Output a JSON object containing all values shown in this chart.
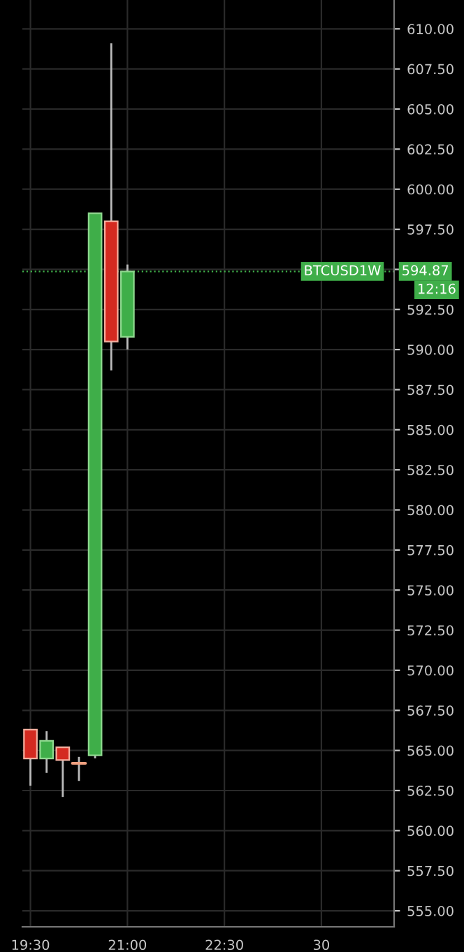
{
  "chart_data": {
    "type": "candlestick",
    "categories": [
      "19:30",
      null,
      null,
      null,
      null,
      null,
      "21:00",
      null,
      null,
      null,
      null,
      null,
      "22:30",
      null,
      null,
      null,
      null,
      null,
      "30",
      null,
      null,
      null,
      null
    ],
    "ohlc": [
      [
        566.3,
        566.3,
        562.8,
        564.5
      ],
      [
        564.5,
        566.2,
        563.6,
        565.6
      ],
      [
        565.2,
        565.2,
        562.1,
        564.4
      ],
      [
        564.2,
        564.6,
        563.1,
        564.2
      ],
      [
        564.7,
        598.5,
        564.5,
        598.5
      ],
      [
        598.0,
        609.1,
        588.7,
        590.5
      ],
      [
        590.8,
        595.3,
        590.0,
        594.87
      ],
      null,
      null,
      null,
      null,
      null,
      null,
      null,
      null,
      null,
      null,
      null,
      null,
      null,
      null,
      null,
      null
    ],
    "colors": [
      "#d42a20",
      "#3fae49",
      "#d42a20",
      "#f0a080",
      "#3fae49",
      "#d42a20",
      "#3fae49",
      null,
      null,
      null,
      null,
      null,
      null,
      null,
      null,
      null,
      null,
      null,
      null,
      null,
      null,
      null,
      null
    ],
    "ylim": [
      554,
      611.8
    ],
    "yticks": [
      {
        "value": 555,
        "label": "555.00"
      },
      {
        "value": 557.5,
        "label": "557.50"
      },
      {
        "value": 560,
        "label": "560.00"
      },
      {
        "value": 562.5,
        "label": "562.50"
      },
      {
        "value": 565,
        "label": "565.00"
      },
      {
        "value": 567.5,
        "label": "567.50"
      },
      {
        "value": 570,
        "label": "570.00"
      },
      {
        "value": 572.5,
        "label": "572.50"
      },
      {
        "value": 575,
        "label": "575.00"
      },
      {
        "value": 577.5,
        "label": "577.50"
      },
      {
        "value": 580,
        "label": "580.00"
      },
      {
        "value": 582.5,
        "label": "582.50"
      },
      {
        "value": 585,
        "label": "585.00"
      },
      {
        "value": 587.5,
        "label": "587.50"
      },
      {
        "value": 590,
        "label": "590.00"
      },
      {
        "value": 592.5,
        "label": "592.50"
      },
      {
        "value": 595,
        "label": null
      },
      {
        "value": 597.5,
        "label": "597.50"
      },
      {
        "value": 600,
        "label": "600.00"
      },
      {
        "value": 602.5,
        "label": "602.50"
      },
      {
        "value": 605,
        "label": "605.00"
      },
      {
        "value": 607.5,
        "label": "607.50"
      },
      {
        "value": 610,
        "label": "610.00"
      }
    ],
    "grid": true,
    "ref_lines": [
      {
        "axis": "y",
        "value": 594.87,
        "label": "BTCUSD1W",
        "color": "#3fae49",
        "line_style": "dotted"
      }
    ],
    "annotations": [
      "594.87",
      "12:16"
    ]
  }
}
